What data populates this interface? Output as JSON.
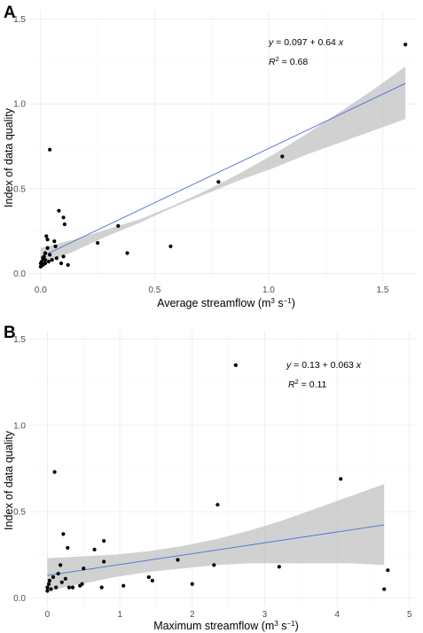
{
  "chart_data": [
    {
      "panel_label": "A",
      "type": "scatter",
      "xlabel_main": "Average streamflow (m",
      "xlabel_sup1": "3",
      "xlabel_mid": " s",
      "xlabel_sup2": "−1",
      "xlabel_end": ")",
      "ylabel": "Index of data quality",
      "xlim": [
        -0.05,
        1.65
      ],
      "ylim": [
        -0.05,
        1.55
      ],
      "xticks": [
        0.0,
        0.5,
        1.0,
        1.5
      ],
      "xtick_labels": [
        "0.0",
        "0.5",
        "1.0",
        "1.5"
      ],
      "yticks": [
        0.0,
        0.5,
        1.0,
        1.5
      ],
      "ytick_labels": [
        "0.0",
        "0.5",
        "1.0",
        "1.5"
      ],
      "equation_y": "y",
      "equation_rest": " = 0.097 + 0.64 ",
      "equation_x": "x",
      "r2_label_r": "R",
      "r2_label_sup": "2",
      "r2_label_rest": " = 0.68",
      "fit": {
        "intercept": 0.097,
        "slope": 0.64,
        "x_range": [
          0.0,
          1.6
        ],
        "ci_lower": [
          0.05,
          0.13,
          0.22,
          0.3,
          0.39,
          0.47,
          0.55,
          0.62,
          0.7,
          0.77,
          0.84,
          0.91
        ],
        "ci_upper": [
          0.15,
          0.2,
          0.26,
          0.32,
          0.4,
          0.49,
          0.59,
          0.7,
          0.82,
          0.95,
          1.08,
          1.22
        ]
      },
      "fit_color": "#4a6fd8",
      "band_color": "#bfbfbf",
      "points": [
        {
          "x": 0.0,
          "y": 0.04
        },
        {
          "x": 0.0,
          "y": 0.06
        },
        {
          "x": 0.005,
          "y": 0.07
        },
        {
          "x": 0.01,
          "y": 0.05
        },
        {
          "x": 0.01,
          "y": 0.09
        },
        {
          "x": 0.015,
          "y": 0.1
        },
        {
          "x": 0.02,
          "y": 0.08
        },
        {
          "x": 0.02,
          "y": 0.12
        },
        {
          "x": 0.02,
          "y": 0.06
        },
        {
          "x": 0.025,
          "y": 0.22
        },
        {
          "x": 0.03,
          "y": 0.2
        },
        {
          "x": 0.03,
          "y": 0.15
        },
        {
          "x": 0.035,
          "y": 0.07
        },
        {
          "x": 0.04,
          "y": 0.73
        },
        {
          "x": 0.04,
          "y": 0.11
        },
        {
          "x": 0.05,
          "y": 0.08
        },
        {
          "x": 0.06,
          "y": 0.19
        },
        {
          "x": 0.065,
          "y": 0.16
        },
        {
          "x": 0.07,
          "y": 0.09
        },
        {
          "x": 0.08,
          "y": 0.37
        },
        {
          "x": 0.09,
          "y": 0.06
        },
        {
          "x": 0.1,
          "y": 0.33
        },
        {
          "x": 0.1,
          "y": 0.1
        },
        {
          "x": 0.105,
          "y": 0.29
        },
        {
          "x": 0.12,
          "y": 0.05
        },
        {
          "x": 0.25,
          "y": 0.18
        },
        {
          "x": 0.34,
          "y": 0.28
        },
        {
          "x": 0.38,
          "y": 0.12
        },
        {
          "x": 0.57,
          "y": 0.16
        },
        {
          "x": 0.78,
          "y": 0.54
        },
        {
          "x": 1.06,
          "y": 0.69
        },
        {
          "x": 1.6,
          "y": 1.35
        }
      ]
    },
    {
      "panel_label": "B",
      "type": "scatter",
      "xlabel_main": "Maximum streamflow (m",
      "xlabel_sup1": "3",
      "xlabel_mid": " s",
      "xlabel_sup2": "−1",
      "xlabel_end": ")",
      "ylabel": "Index of data quality",
      "xlim": [
        -0.25,
        5.1
      ],
      "ylim": [
        -0.05,
        1.55
      ],
      "xticks": [
        0,
        1,
        2,
        3,
        4,
        5
      ],
      "xtick_labels": [
        "0",
        "1",
        "2",
        "3",
        "4",
        "5"
      ],
      "yticks": [
        0.0,
        0.5,
        1.0,
        1.5
      ],
      "ytick_labels": [
        "0.0",
        "0.5",
        "1.0",
        "1.5"
      ],
      "equation_y": "y",
      "equation_rest": " = 0.13 + 0.063 ",
      "equation_x": "x",
      "r2_label_r": "R",
      "r2_label_sup": "2",
      "r2_label_rest": " = 0.11",
      "fit": {
        "intercept": 0.13,
        "slope": 0.063,
        "x_range": [
          0.0,
          4.65
        ],
        "ci_lower": [
          0.04,
          0.08,
          0.12,
          0.15,
          0.17,
          0.19,
          0.2,
          0.2,
          0.2,
          0.2,
          0.19
        ],
        "ci_upper": [
          0.23,
          0.24,
          0.25,
          0.27,
          0.3,
          0.34,
          0.39,
          0.45,
          0.52,
          0.59,
          0.66
        ]
      },
      "fit_color": "#4a6fd8",
      "band_color": "#bfbfbf",
      "points": [
        {
          "x": 0.0,
          "y": 0.04
        },
        {
          "x": 0.0,
          "y": 0.06
        },
        {
          "x": 0.02,
          "y": 0.08
        },
        {
          "x": 0.03,
          "y": 0.1
        },
        {
          "x": 0.05,
          "y": 0.05
        },
        {
          "x": 0.08,
          "y": 0.12
        },
        {
          "x": 0.1,
          "y": 0.73
        },
        {
          "x": 0.12,
          "y": 0.06
        },
        {
          "x": 0.15,
          "y": 0.14
        },
        {
          "x": 0.18,
          "y": 0.19
        },
        {
          "x": 0.2,
          "y": 0.09
        },
        {
          "x": 0.22,
          "y": 0.37
        },
        {
          "x": 0.25,
          "y": 0.11
        },
        {
          "x": 0.28,
          "y": 0.29
        },
        {
          "x": 0.3,
          "y": 0.06
        },
        {
          "x": 0.35,
          "y": 0.06
        },
        {
          "x": 0.45,
          "y": 0.07
        },
        {
          "x": 0.48,
          "y": 0.08
        },
        {
          "x": 0.5,
          "y": 0.17
        },
        {
          "x": 0.65,
          "y": 0.28
        },
        {
          "x": 0.75,
          "y": 0.06
        },
        {
          "x": 0.78,
          "y": 0.33
        },
        {
          "x": 0.78,
          "y": 0.21
        },
        {
          "x": 1.05,
          "y": 0.07
        },
        {
          "x": 1.4,
          "y": 0.12
        },
        {
          "x": 1.45,
          "y": 0.1
        },
        {
          "x": 1.8,
          "y": 0.22
        },
        {
          "x": 2.0,
          "y": 0.08
        },
        {
          "x": 2.3,
          "y": 0.19
        },
        {
          "x": 2.35,
          "y": 0.54
        },
        {
          "x": 2.6,
          "y": 1.35
        },
        {
          "x": 3.2,
          "y": 0.18
        },
        {
          "x": 4.05,
          "y": 0.69
        },
        {
          "x": 4.65,
          "y": 0.05
        },
        {
          "x": 4.7,
          "y": 0.16
        }
      ]
    }
  ]
}
